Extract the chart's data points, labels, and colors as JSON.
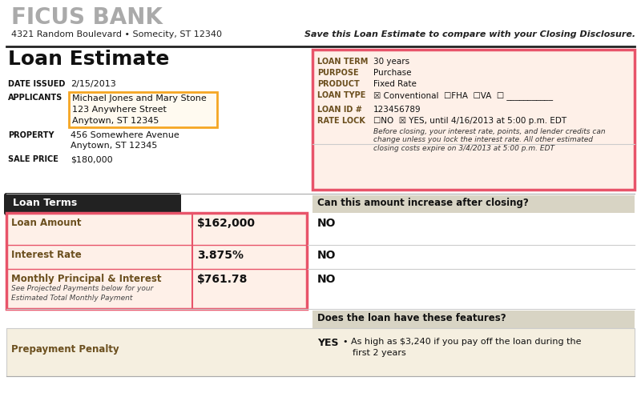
{
  "bank_name": "FICUS BANK",
  "bank_address": "4321 Random Boulevard • Somecity, ST 12340",
  "save_text": "Save this Loan Estimate to compare with your Closing Disclosure.",
  "doc_title": "Loan Estimate",
  "date_issued_label": "DATE ISSUED",
  "date_issued_val": "2/15/2013",
  "applicants_label": "APPLICANTS",
  "applicants_val": [
    "Michael Jones and Mary Stone",
    "123 Anywhere Street",
    "Anytown, ST 12345"
  ],
  "property_label": "PROPERTY",
  "property_val": [
    "456 Somewhere Avenue",
    "Anytown, ST 12345"
  ],
  "sale_price_label": "SALE PRICE",
  "sale_price_val": "$180,000",
  "loan_term_label": "LOAN TERM",
  "loan_term_val": "30 years",
  "purpose_label": "PURPOSE",
  "purpose_val": "Purchase",
  "product_label": "PRODUCT",
  "product_val": "Fixed Rate",
  "loan_type_label": "LOAN TYPE",
  "loan_type_val": "☒ Conventional  ☐FHA  ☐VA  ☐ ___________",
  "loan_id_label": "LOAN ID #",
  "loan_id_val": "123456789",
  "rate_lock_label": "RATE LOCK",
  "rate_lock_val": "☐NO  ☒ YES, until 4/16/2013 at 5:00 p.m. EDT",
  "rate_lock_note": "Before closing, your interest rate, points, and lender credits can\nchange unless you lock the interest rate. All other estimated\nclosing costs expire on 3/4/2013 at 5:00 p.m. EDT",
  "loan_terms_title": "Loan Terms",
  "can_increase_title": "Can this amount increase after closing?",
  "loan_amount_label": "Loan Amount",
  "loan_amount_val": "$162,000",
  "loan_amount_answer": "NO",
  "interest_rate_label": "Interest Rate",
  "interest_rate_val": "3.875%",
  "interest_rate_answer": "NO",
  "monthly_pi_label": "Monthly Principal & Interest",
  "monthly_pi_note1": "See Projected Payments below for your",
  "monthly_pi_note2": "Estimated Total Monthly Payment",
  "monthly_pi_val": "$761.78",
  "monthly_pi_answer": "NO",
  "features_title": "Does the loan have these features?",
  "prepayment_label": "Prepayment Penalty",
  "prepayment_answer": "YES",
  "prepayment_detail1": "• As high as $3,240 if you pay off the loan during the",
  "prepayment_detail2": "first 2 years",
  "color_pink_border": "#e8546a",
  "color_orange_box": "#f5a623",
  "color_peach_bg": "#fef0e8",
  "color_tan_bg": "#f5efe0",
  "color_header_bg": "#222222",
  "color_gray_bg": "#d8d4c4",
  "color_label_dark": "#6b4f1e",
  "color_white": "#ffffff",
  "color_gray_line": "#aaaaaa",
  "color_black": "#111111"
}
